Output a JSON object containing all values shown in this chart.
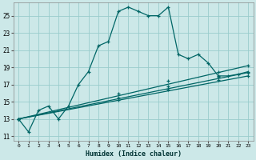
{
  "xlabel": "Humidex (Indice chaleur)",
  "bg_color": "#cce8e8",
  "grid_color": "#99cccc",
  "line_color": "#006666",
  "xlim": [
    -0.5,
    23.5
  ],
  "ylim": [
    10.5,
    26.5
  ],
  "xticks": [
    0,
    1,
    2,
    3,
    4,
    5,
    6,
    7,
    8,
    9,
    10,
    11,
    12,
    13,
    14,
    15,
    16,
    17,
    18,
    19,
    20,
    21,
    22,
    23
  ],
  "yticks": [
    11,
    13,
    15,
    17,
    19,
    21,
    23,
    25
  ],
  "series1_x": [
    0,
    1,
    2,
    3,
    4,
    5,
    6,
    7,
    8,
    9,
    10,
    11,
    12,
    13,
    14,
    15,
    16,
    17,
    18,
    19,
    20,
    21,
    22,
    23
  ],
  "series1_y": [
    13,
    11.5,
    14,
    14.5,
    13,
    14.5,
    17,
    18.5,
    21.5,
    22,
    25.5,
    26,
    25.5,
    25,
    25,
    26,
    20.5,
    20,
    20.5,
    19.5,
    18,
    18,
    18.2,
    18.5
  ],
  "series2_x": [
    0,
    23
  ],
  "series2_y": [
    13,
    18.0
  ],
  "series3_x": [
    0,
    23
  ],
  "series3_y": [
    13,
    18.4
  ],
  "series4_x": [
    0,
    23
  ],
  "series4_y": [
    13,
    19.2
  ],
  "marker_x2": [
    0,
    10,
    15,
    20,
    23
  ],
  "marker_y2": [
    13,
    15.2,
    16.4,
    17.5,
    18.0
  ],
  "marker_x3": [
    0,
    10,
    15,
    20,
    23
  ],
  "marker_y3": [
    13,
    15.5,
    16.8,
    17.9,
    18.4
  ],
  "marker_x4": [
    0,
    10,
    15,
    20,
    23
  ],
  "marker_y4": [
    13,
    15.9,
    17.4,
    18.5,
    19.2
  ]
}
